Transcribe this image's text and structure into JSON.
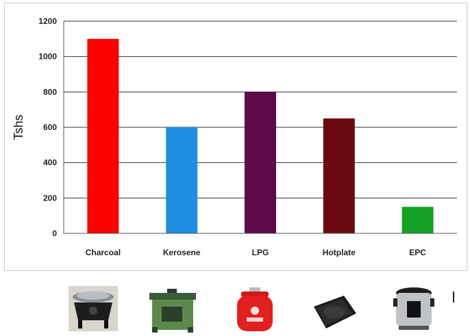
{
  "chart_data": {
    "type": "bar",
    "title": "",
    "xlabel": "",
    "ylabel": "Tshs",
    "categories": [
      "Charcoal",
      "Kerosene",
      "LPG",
      "Hotplate",
      "EPC"
    ],
    "values": [
      1100,
      600,
      800,
      650,
      150
    ],
    "colors": [
      "#ff0000",
      "#1e8fe0",
      "#5c0a4c",
      "#6a0a10",
      "#13a023"
    ],
    "ylim": [
      0,
      1200
    ],
    "yticks": [
      0,
      200,
      400,
      600,
      800,
      1000,
      1200
    ],
    "ytick_labels": [
      "0",
      "200",
      "400",
      "600",
      "800",
      "1000",
      "1200"
    ],
    "grid": true,
    "legend": "none"
  },
  "icons": [
    {
      "name": "charcoal-stove-icon",
      "category": "Charcoal"
    },
    {
      "name": "kerosene-stove-icon",
      "category": "Kerosene"
    },
    {
      "name": "lpg-cylinder-icon",
      "category": "LPG"
    },
    {
      "name": "hotplate-icon",
      "category": "Hotplate"
    },
    {
      "name": "electric-pressure-cooker-icon",
      "category": "EPC"
    }
  ]
}
